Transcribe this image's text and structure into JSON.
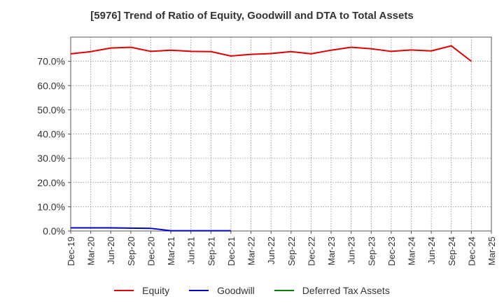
{
  "chart_data": {
    "type": "line",
    "title": "[5976]  Trend of Ratio of Equity, Goodwill and DTA to Total Assets",
    "xlabel": "",
    "ylabel": "",
    "ylim": [
      0,
      0.8
    ],
    "y_ticks": [
      0.0,
      0.1,
      0.2,
      0.3,
      0.4,
      0.5,
      0.6,
      0.7
    ],
    "y_tick_labels": [
      "0.0%",
      "10.0%",
      "20.0%",
      "30.0%",
      "40.0%",
      "50.0%",
      "60.0%",
      "70.0%"
    ],
    "categories": [
      "Dec-19",
      "Mar-20",
      "Jun-20",
      "Sep-20",
      "Dec-20",
      "Mar-21",
      "Jun-21",
      "Sep-21",
      "Dec-21",
      "Mar-22",
      "Jun-22",
      "Sep-22",
      "Dec-22",
      "Mar-23",
      "Jun-23",
      "Sep-23",
      "Dec-23",
      "Mar-24",
      "Jun-24",
      "Sep-24",
      "Dec-24",
      "Mar-25"
    ],
    "grid": true,
    "legend_position": "bottom",
    "series": [
      {
        "name": "Equity",
        "color": "#e00000",
        "values": [
          0.731,
          0.74,
          0.755,
          0.758,
          0.741,
          0.746,
          0.741,
          0.74,
          0.722,
          0.729,
          0.732,
          0.74,
          0.731,
          0.746,
          0.758,
          0.752,
          0.741,
          0.747,
          0.743,
          0.764,
          0.7,
          null
        ]
      },
      {
        "name": "Goodwill",
        "color": "#0000cc",
        "values": [
          0.013,
          0.013,
          0.013,
          0.012,
          0.011,
          0.001,
          0.001,
          0.001,
          0.001,
          null,
          null,
          null,
          null,
          null,
          null,
          null,
          null,
          null,
          null,
          null,
          null,
          null
        ]
      },
      {
        "name": "Deferred Tax Assets",
        "color": "#008000",
        "values": [
          null,
          null,
          null,
          null,
          null,
          null,
          null,
          null,
          null,
          null,
          null,
          null,
          null,
          null,
          null,
          null,
          null,
          null,
          null,
          null,
          null,
          null
        ]
      }
    ]
  }
}
